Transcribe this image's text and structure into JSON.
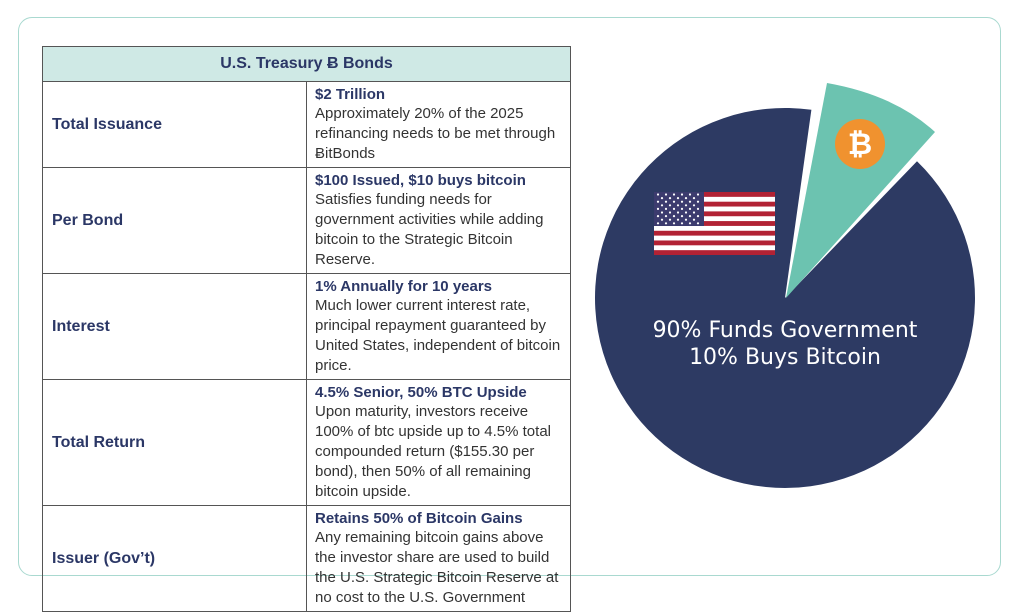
{
  "table": {
    "title": "U.S. Treasury Ƀ Bonds",
    "rows": [
      {
        "label": "Total Issuance",
        "headline": "$2 Trillion",
        "body": "Approximately 20% of the 2025 refinancing needs to be met through ɃitBonds"
      },
      {
        "label": "Per Bond",
        "headline": "$100 Issued, $10 buys bitcoin",
        "body": "Satisfies funding needs for government activities while adding bitcoin to the Strategic Bitcoin Reserve."
      },
      {
        "label": "Interest",
        "headline": "1% Annually for 10 years",
        "body": "Much lower current interest rate, principal repayment guaranteed by United States, independent of bitcoin price."
      },
      {
        "label": "Total Return",
        "headline": "4.5% Senior, 50% BTC Upside",
        "body": "Upon maturity, investors receive 100% of btc upside up to 4.5% total compounded return ($155.30 per bond), then 50% of all remaining bitcoin upside."
      },
      {
        "label": "Issuer (Gov’t)",
        "headline": "Retains 50% of Bitcoin Gains",
        "body": "Any remaining bitcoin gains above the investor share are used to build the U.S. Strategic Bitcoin Reserve at no cost to the U.S. Government"
      }
    ]
  },
  "chart_data": {
    "type": "pie",
    "slices": [
      {
        "label": "Funds Government",
        "value": 90,
        "color": "#2d3a63",
        "icon": "us-flag-icon"
      },
      {
        "label": "Buys Bitcoin",
        "value": 10,
        "color": "#6cc3b0",
        "icon": "bitcoin-icon",
        "exploded": true
      }
    ],
    "caption_lines": [
      "90% Funds Government",
      "10% Buys Bitcoin"
    ],
    "bitcoin_symbol": "₿",
    "colors": {
      "bitcoin_badge": "#f0922f"
    }
  }
}
